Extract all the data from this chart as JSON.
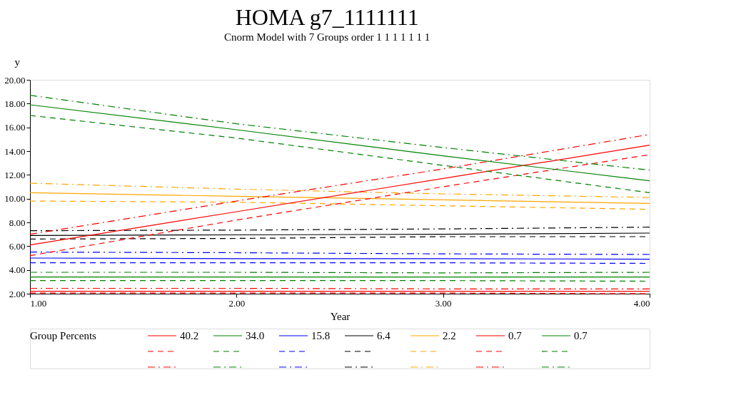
{
  "chart_data": {
    "type": "line",
    "title": "HOMA  g7_1111111",
    "subtitle": "Cnorm Model with 7 Groups order 1 1 1 1 1 1 1",
    "xlabel": "Year",
    "ylabel": "y",
    "legend_title": "Group Percents",
    "legend": "bottom",
    "grid": false,
    "x": [
      1,
      2,
      3,
      4
    ],
    "xlim": [
      1,
      4
    ],
    "xticks": [
      {
        "value": 1,
        "label": "1.00"
      },
      {
        "value": 2,
        "label": "2.00"
      },
      {
        "value": 3,
        "label": "3.00"
      },
      {
        "value": 4,
        "label": "4.00"
      }
    ],
    "ylim": [
      2,
      20
    ],
    "yticks": [
      {
        "value": 2,
        "label": "2.00"
      },
      {
        "value": 4,
        "label": "4.00"
      },
      {
        "value": 6,
        "label": "6.00"
      },
      {
        "value": 8,
        "label": "8.00"
      },
      {
        "value": 10,
        "label": "10.00"
      },
      {
        "value": 12,
        "label": "12.00"
      },
      {
        "value": 14,
        "label": "14.00"
      },
      {
        "value": 16,
        "label": "16.00"
      },
      {
        "value": 18,
        "label": "18.00"
      },
      {
        "value": 20,
        "label": "20.00"
      }
    ],
    "series": [
      {
        "name": "40.2",
        "color": "#ff0000",
        "line_style": "solid",
        "values": [
          2.2,
          2.2,
          2.2,
          2.2
        ]
      },
      {
        "color": "#ff0000",
        "line_style": "dashed",
        "values": [
          2.05,
          2.05,
          2.05,
          2.0
        ]
      },
      {
        "color": "#ff0000",
        "line_style": "dashdot",
        "values": [
          2.45,
          2.45,
          2.4,
          2.4
        ]
      },
      {
        "name": "34.0",
        "color": "#008000",
        "line_style": "solid",
        "values": [
          3.4,
          3.4,
          3.4,
          3.4
        ]
      },
      {
        "color": "#008000",
        "line_style": "dashed",
        "values": [
          3.1,
          3.1,
          3.1,
          3.05
        ]
      },
      {
        "color": "#008000",
        "line_style": "dashdot",
        "values": [
          3.8,
          3.8,
          3.75,
          3.8
        ]
      },
      {
        "name": "15.8",
        "color": "#0000ff",
        "line_style": "solid",
        "values": [
          5.0,
          4.95,
          4.95,
          4.9
        ]
      },
      {
        "color": "#0000ff",
        "line_style": "dashed",
        "values": [
          4.6,
          4.6,
          4.6,
          4.55
        ]
      },
      {
        "color": "#0000ff",
        "line_style": "dashdot",
        "values": [
          5.5,
          5.45,
          5.35,
          5.3
        ]
      },
      {
        "name": "6.4",
        "color": "#000000",
        "line_style": "solid",
        "values": [
          6.9,
          6.95,
          7.0,
          7.1
        ]
      },
      {
        "color": "#000000",
        "line_style": "dashed",
        "values": [
          6.6,
          6.65,
          6.8,
          6.8
        ]
      },
      {
        "color": "#000000",
        "line_style": "dashdot",
        "values": [
          7.3,
          7.35,
          7.45,
          7.6
        ]
      },
      {
        "name": "2.2",
        "color": "#ffa500",
        "line_style": "solid",
        "values": [
          10.5,
          10.2,
          9.9,
          9.6
        ]
      },
      {
        "color": "#ffa500",
        "line_style": "dashed",
        "values": [
          9.8,
          9.7,
          9.4,
          9.1
        ]
      },
      {
        "color": "#ffa500",
        "line_style": "dashdot",
        "values": [
          11.3,
          10.8,
          10.4,
          10.1
        ]
      },
      {
        "name": "0.7",
        "color": "#ff0000",
        "line_style": "solid",
        "values": [
          6.1,
          8.9,
          11.7,
          14.5
        ]
      },
      {
        "color": "#ff0000",
        "line_style": "dashed",
        "values": [
          5.2,
          8.2,
          11.0,
          13.7
        ]
      },
      {
        "color": "#ff0000",
        "line_style": "dashdot",
        "values": [
          7.0,
          9.8,
          12.5,
          15.4
        ]
      },
      {
        "name": "0.7",
        "color": "#008000",
        "line_style": "solid",
        "values": [
          17.9,
          15.8,
          13.6,
          11.5
        ]
      },
      {
        "color": "#008000",
        "line_style": "dashed",
        "values": [
          17.0,
          15.1,
          12.8,
          10.5
        ]
      },
      {
        "color": "#008000",
        "line_style": "dashdot",
        "values": [
          18.7,
          16.3,
          14.3,
          12.4
        ]
      }
    ]
  }
}
